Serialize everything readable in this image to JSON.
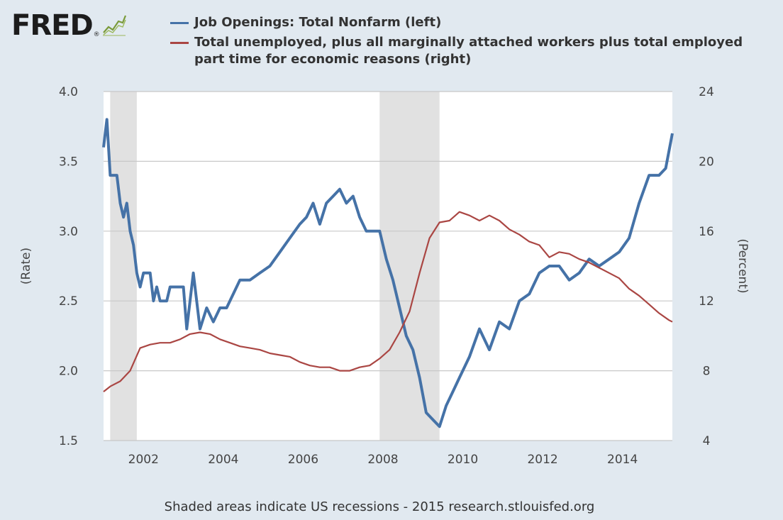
{
  "logo": {
    "text": "FRED",
    "reg": "®"
  },
  "colors": {
    "background": "#e1e9f0",
    "plot_background": "#ffffff",
    "recession": "#e1e1e1",
    "grid": "#c8c8c8",
    "series_left": "#4572a7",
    "series_right": "#aa4643"
  },
  "chart_data": {
    "type": "line",
    "legend_position": "top",
    "grid": true,
    "x_range": [
      "2001-01",
      "2015-04"
    ],
    "x_ticks": [
      "2002",
      "2004",
      "2006",
      "2008",
      "2010",
      "2012",
      "2014"
    ],
    "left_axis": {
      "label": "(Rate)",
      "range": [
        1.5,
        4.0
      ],
      "ticks": [
        "1.5",
        "2.0",
        "2.5",
        "3.0",
        "3.5",
        "4.0"
      ]
    },
    "right_axis": {
      "label": "(Percent)",
      "range": [
        4,
        24
      ],
      "ticks": [
        "4",
        "8",
        "12",
        "16",
        "20",
        "24"
      ]
    },
    "recessions": [
      [
        "2001-03",
        "2001-11"
      ],
      [
        "2007-12",
        "2009-06"
      ]
    ],
    "series": [
      {
        "name": "Job Openings: Total Nonfarm (left)",
        "axis": "left",
        "color": "#4572a7",
        "x": [
          "2001-01",
          "2001-02",
          "2001-03",
          "2001-05",
          "2001-06",
          "2001-07",
          "2001-08",
          "2001-09",
          "2001-10",
          "2001-11",
          "2001-12",
          "2002-01",
          "2002-03",
          "2002-04",
          "2002-05",
          "2002-06",
          "2002-08",
          "2002-09",
          "2002-11",
          "2003-01",
          "2003-02",
          "2003-04",
          "2003-06",
          "2003-08",
          "2003-10",
          "2003-12",
          "2004-02",
          "2004-04",
          "2004-06",
          "2004-09",
          "2004-12",
          "2005-03",
          "2005-06",
          "2005-09",
          "2005-12",
          "2006-02",
          "2006-04",
          "2006-06",
          "2006-08",
          "2006-10",
          "2006-12",
          "2007-02",
          "2007-04",
          "2007-06",
          "2007-08",
          "2007-10",
          "2007-12",
          "2008-02",
          "2008-04",
          "2008-06",
          "2008-08",
          "2008-10",
          "2008-12",
          "2009-02",
          "2009-04",
          "2009-06",
          "2009-08",
          "2009-10",
          "2009-12",
          "2010-03",
          "2010-06",
          "2010-09",
          "2010-12",
          "2011-03",
          "2011-06",
          "2011-09",
          "2011-12",
          "2012-03",
          "2012-06",
          "2012-09",
          "2012-12",
          "2013-03",
          "2013-06",
          "2013-09",
          "2013-12",
          "2014-03",
          "2014-06",
          "2014-09",
          "2014-12",
          "2015-02",
          "2015-04"
        ],
        "y": [
          3.6,
          3.8,
          3.4,
          3.4,
          3.2,
          3.1,
          3.2,
          3.0,
          2.9,
          2.7,
          2.6,
          2.7,
          2.7,
          2.5,
          2.6,
          2.5,
          2.5,
          2.6,
          2.6,
          2.6,
          2.3,
          2.7,
          2.3,
          2.45,
          2.35,
          2.45,
          2.45,
          2.55,
          2.65,
          2.65,
          2.7,
          2.75,
          2.85,
          2.95,
          3.05,
          3.1,
          3.2,
          3.05,
          3.2,
          3.25,
          3.3,
          3.2,
          3.25,
          3.1,
          3.0,
          3.0,
          3.0,
          2.8,
          2.65,
          2.45,
          2.25,
          2.15,
          1.95,
          1.7,
          1.65,
          1.6,
          1.75,
          1.85,
          1.95,
          2.1,
          2.3,
          2.15,
          2.35,
          2.3,
          2.5,
          2.55,
          2.7,
          2.75,
          2.75,
          2.65,
          2.7,
          2.8,
          2.75,
          2.8,
          2.85,
          2.95,
          3.2,
          3.4,
          3.4,
          3.45,
          3.7
        ]
      },
      {
        "name": "Total unemployed, plus all marginally attached workers plus total employed part time for economic reasons (right)",
        "axis": "right",
        "color": "#aa4643",
        "x": [
          "2001-01",
          "2001-03",
          "2001-06",
          "2001-09",
          "2001-12",
          "2002-03",
          "2002-06",
          "2002-09",
          "2002-12",
          "2003-03",
          "2003-06",
          "2003-09",
          "2003-12",
          "2004-03",
          "2004-06",
          "2004-09",
          "2004-12",
          "2005-03",
          "2005-06",
          "2005-09",
          "2005-12",
          "2006-03",
          "2006-06",
          "2006-09",
          "2006-12",
          "2007-03",
          "2007-06",
          "2007-09",
          "2007-12",
          "2008-03",
          "2008-06",
          "2008-09",
          "2008-12",
          "2009-03",
          "2009-06",
          "2009-09",
          "2009-12",
          "2010-03",
          "2010-06",
          "2010-09",
          "2010-12",
          "2011-03",
          "2011-06",
          "2011-09",
          "2011-12",
          "2012-03",
          "2012-06",
          "2012-09",
          "2012-12",
          "2013-03",
          "2013-06",
          "2013-09",
          "2013-12",
          "2014-03",
          "2014-06",
          "2014-09",
          "2014-12",
          "2015-03",
          "2015-04"
        ],
        "y": [
          6.8,
          7.1,
          7.4,
          8.0,
          9.3,
          9.5,
          9.6,
          9.6,
          9.8,
          10.1,
          10.2,
          10.1,
          9.8,
          9.6,
          9.4,
          9.3,
          9.2,
          9.0,
          8.9,
          8.8,
          8.5,
          8.3,
          8.2,
          8.2,
          8.0,
          8.0,
          8.2,
          8.3,
          8.7,
          9.2,
          10.2,
          11.4,
          13.6,
          15.6,
          16.5,
          16.6,
          17.1,
          16.9,
          16.6,
          16.9,
          16.6,
          16.1,
          15.8,
          15.4,
          15.2,
          14.5,
          14.8,
          14.7,
          14.4,
          14.2,
          13.9,
          13.6,
          13.3,
          12.7,
          12.3,
          11.8,
          11.3,
          10.9,
          10.8
        ]
      }
    ]
  },
  "footer": "Shaded areas indicate US recessions - 2015 research.stlouisfed.org"
}
